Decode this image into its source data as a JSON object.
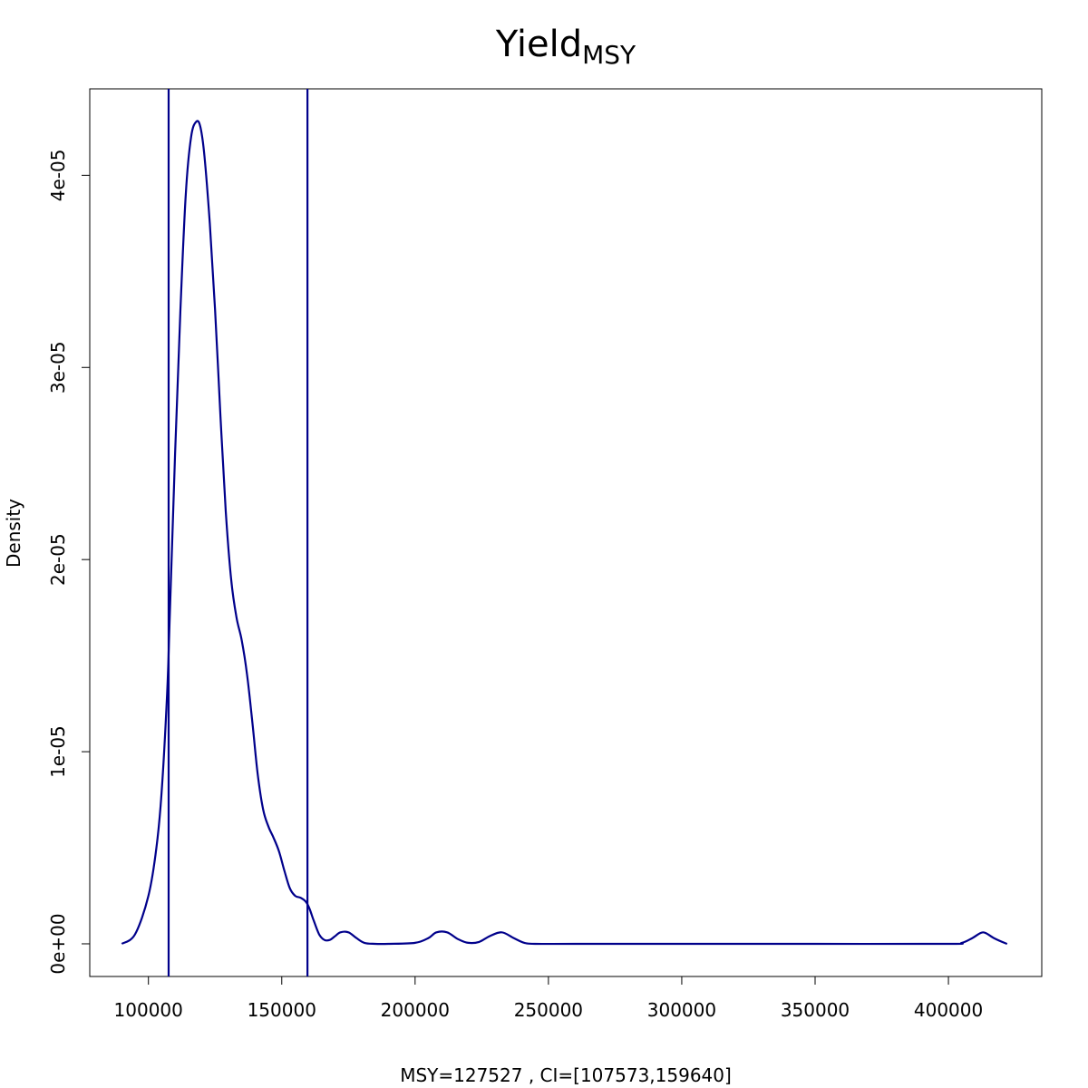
{
  "chart_data": {
    "type": "line",
    "title": "Yield",
    "title_subscript": "MSY",
    "xlabel": "MSY=127527 , CI=[107573,159640]",
    "ylabel": "Density",
    "xlim": [
      78000,
      435000
    ],
    "ylim": [
      -1.7e-06,
      4.45e-05
    ],
    "x_ticks": [
      100000,
      150000,
      200000,
      250000,
      300000,
      350000,
      400000
    ],
    "x_tick_labels": [
      "100000",
      "150000",
      "200000",
      "250000",
      "300000",
      "350000",
      "400000"
    ],
    "y_ticks": [
      0,
      1e-05,
      2e-05,
      3e-05,
      4e-05
    ],
    "y_tick_labels": [
      "0e+00",
      "1e-05",
      "2e-05",
      "3e-05",
      "4e-05"
    ],
    "vlines": [
      107573,
      159640
    ],
    "grid": false,
    "legend": "none",
    "line_color": "#00008B",
    "series": [
      {
        "x": [
          90000,
          95000,
          100000,
          103000,
          105000,
          107000,
          108000,
          110000,
          112000,
          114000,
          116000,
          118000,
          119500,
          121000,
          123000,
          125000,
          127000,
          129000,
          131000,
          133000,
          135000,
          137000,
          139000,
          141000,
          143000,
          145000,
          147000,
          149000,
          151000,
          153000,
          155000,
          157000,
          159000,
          160500,
          162000,
          164000,
          166000,
          168000,
          170000,
          172000,
          175000,
          178000,
          181000,
          185000,
          190000,
          200000,
          205000,
          208000,
          212000,
          216000,
          220000,
          224000,
          228000,
          232500,
          237000,
          241000,
          245000,
          260000,
          300000,
          350000,
          400000,
          405000,
          409000,
          413000,
          417000,
          421000,
          422000
        ],
        "y": [
          0,
          5e-07,
          2.5e-06,
          5e-06,
          8e-06,
          1.3e-05,
          1.7e-05,
          2.55e-05,
          3.3e-05,
          3.9e-05,
          4.2e-05,
          4.28e-05,
          4.25e-05,
          4.1e-05,
          3.75e-05,
          3.3e-05,
          2.75e-05,
          2.25e-05,
          1.9e-05,
          1.7e-05,
          1.58e-05,
          1.4e-05,
          1.15e-05,
          8.8e-06,
          7e-06,
          6.1e-06,
          5.5e-06,
          4.8e-06,
          3.8e-06,
          2.9e-06,
          2.5e-06,
          2.4e-06,
          2.2e-06,
          1.8e-06,
          1.2e-06,
          5e-07,
          2e-07,
          2e-07,
          4e-07,
          6e-07,
          6e-07,
          3e-07,
          5e-08,
          0,
          0,
          5e-08,
          3e-07,
          6e-07,
          6e-07,
          2.5e-07,
          5e-08,
          1e-07,
          4e-07,
          6e-07,
          3e-07,
          5e-08,
          0,
          0,
          0,
          0,
          0,
          5e-08,
          3e-07,
          6e-07,
          3e-07,
          5e-08,
          0
        ]
      }
    ]
  }
}
